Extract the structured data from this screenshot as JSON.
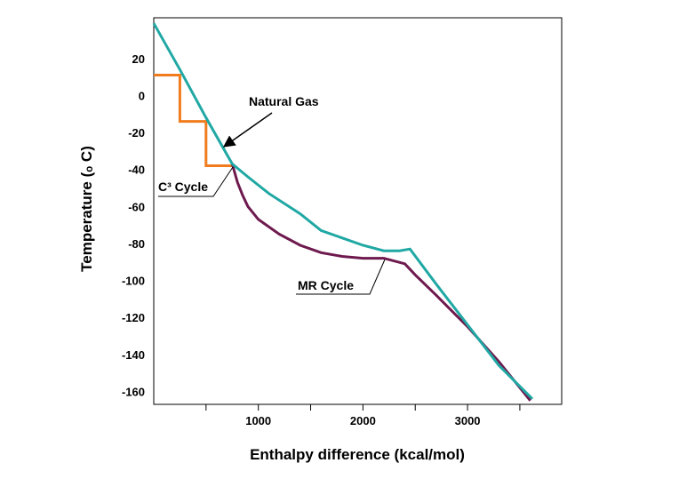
{
  "colors": {
    "natural_gas": "#20A8A4",
    "mr_cycle": "#6E1A4E",
    "c3_cycle": "#F07C1E",
    "axis": "#000000"
  },
  "chart_data": {
    "type": "line",
    "xlabel": "Enthalpy difference (kcal/mol)",
    "ylabel": "Temperature (ₒ C)",
    "xlim": [
      0,
      3900
    ],
    "ylim": [
      -167,
      42
    ],
    "xticks": [
      1000,
      2000,
      3000
    ],
    "yticks": [
      20,
      0,
      -20,
      -40,
      -60,
      -80,
      -100,
      -120,
      -140,
      -160
    ],
    "grid": false,
    "series": [
      {
        "key": "natural_gas",
        "name": "Natural Gas",
        "x": [
          0,
          250,
          500,
          750,
          900,
          1100,
          1400,
          1600,
          1800,
          2000,
          2200,
          2350,
          2450,
          2700,
          3000,
          3300,
          3620
        ],
        "y": [
          39,
          14,
          -12,
          -37,
          -44,
          -53,
          -64,
          -73,
          -77,
          -81,
          -84,
          -84,
          -83,
          -102,
          -124,
          -146,
          -164
        ]
      },
      {
        "key": "mr_cycle",
        "name": "MR Cycle",
        "x": [
          750,
          800,
          850,
          900,
          1000,
          1200,
          1400,
          1600,
          1800,
          2000,
          2200,
          2400,
          2500,
          2700,
          3000,
          3300,
          3600
        ],
        "y": [
          -37,
          -47,
          -54,
          -60,
          -67,
          -75,
          -81,
          -85,
          -87,
          -88,
          -88,
          -91,
          -97,
          -108,
          -125,
          -144,
          -165
        ]
      },
      {
        "key": "c3_cycle",
        "name": "C³ Cycle",
        "x": [
          0,
          250,
          250,
          500,
          500,
          750
        ],
        "y": [
          11,
          11,
          -14,
          -14,
          -38,
          -38
        ]
      }
    ],
    "annotations": [
      {
        "name": "natural-gas-annotation",
        "text": "Natural Gas"
      },
      {
        "name": "c3-cycle-annotation",
        "text": "C³ Cycle"
      },
      {
        "name": "mr-cycle-annotation",
        "text": "MR Cycle"
      }
    ]
  }
}
